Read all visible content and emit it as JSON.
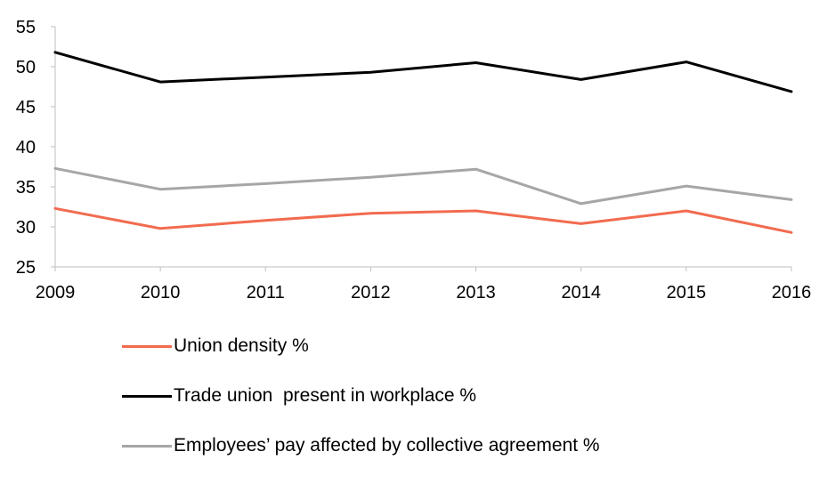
{
  "chart_data": {
    "type": "line",
    "x": [
      "2009",
      "2010",
      "2011",
      "2012",
      "2013",
      "2014",
      "2015",
      "2016"
    ],
    "y_ticks": [
      "25",
      "30",
      "35",
      "40",
      "45",
      "50",
      "55"
    ],
    "ylim": [
      25,
      55
    ],
    "grid": false,
    "legend_position": "bottom",
    "series": [
      {
        "name": "Union density %",
        "color": "#f26b4f",
        "values": [
          32.3,
          29.8,
          30.8,
          31.7,
          32.0,
          30.4,
          32.0,
          29.3
        ]
      },
      {
        "name": "Trade union  present in workplace %",
        "color": "#000000",
        "values": [
          51.8,
          48.1,
          48.7,
          49.3,
          50.5,
          48.4,
          50.6,
          46.9
        ]
      },
      {
        "name": "Employees’ pay affected by collective agreement %",
        "color": "#a6a6a6",
        "values": [
          37.3,
          34.7,
          35.4,
          36.2,
          37.2,
          32.9,
          35.1,
          33.4
        ]
      }
    ]
  }
}
